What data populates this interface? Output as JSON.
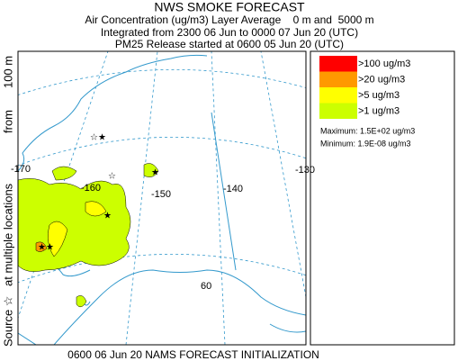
{
  "header": {
    "title": "NWS SMOKE FORECAST",
    "lines": [
      "Air Concentration (ug/m3) Layer Average    0 m and  5000 m",
      "Integrated from 2300 06 Jun to 0000 07 Jun 20 (UTC)",
      "PM25 Release started at 0600 05 Jun 20 (UTC)"
    ]
  },
  "map": {
    "grid_labels": [
      "-170",
      "-160",
      "-150",
      "-140",
      "-130",
      "60"
    ]
  },
  "legend": {
    "items": [
      {
        "label": ">100 ug/m3",
        "color": "#ff0000"
      },
      {
        "label": ">20 ug/m3",
        "color": "#ff9900"
      },
      {
        "label": ">5 ug/m3",
        "color": "#ffff00"
      },
      {
        "label": ">1 ug/m3",
        "color": "#ccff00"
      }
    ],
    "maximum": "Maximum: 1.5E+02 ug/m3",
    "minimum": "Minimum: 1.9E-08 ug/m3"
  },
  "side_labels": [
    "Source ☆",
    "at multiple locations",
    "from",
    "100 m"
  ],
  "footer": "0600 06 Jun 20 NAMS FORECAST INITIALIZATION"
}
